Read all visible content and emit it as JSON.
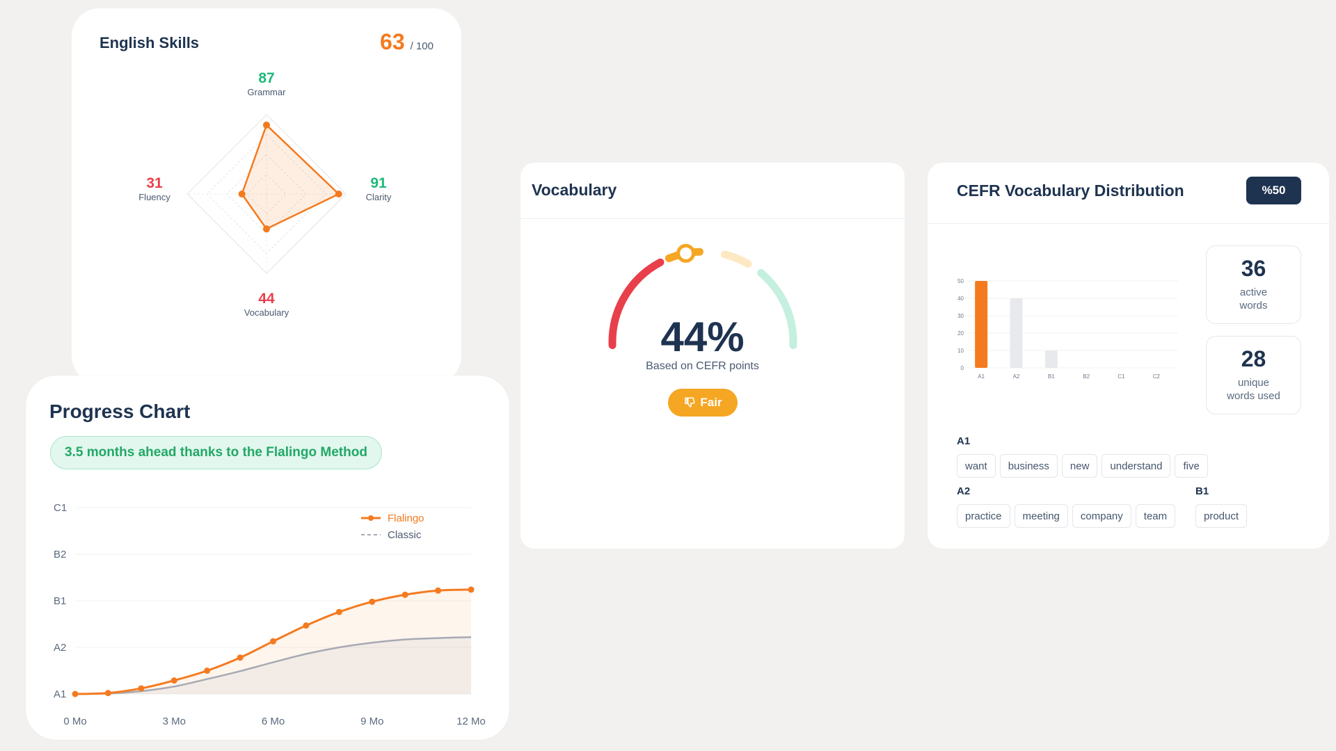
{
  "skills": {
    "title": "English Skills",
    "score": "63",
    "score_max": "/ 100",
    "axes": [
      {
        "name": "Grammar",
        "value": 87,
        "value_text": "87",
        "color": "#1db97a"
      },
      {
        "name": "Clarity",
        "value": 91,
        "value_text": "91",
        "color": "#1db97a"
      },
      {
        "name": "Vocabulary",
        "value": 44,
        "value_text": "44",
        "color": "#e8404b"
      },
      {
        "name": "Fluency",
        "value": 31,
        "value_text": "31",
        "color": "#e8404b"
      }
    ]
  },
  "progress": {
    "title": "Progress Chart",
    "note": "3.5 months ahead thanks to the Flalingo Method",
    "legend": {
      "primary": "Flalingo",
      "secondary": "Classic"
    }
  },
  "vocabulary": {
    "title": "Vocabulary",
    "percent": "44%",
    "basis": "Based on CEFR points",
    "rating": "Fair",
    "rating_icon": "thumbs-down-icon",
    "value": 44
  },
  "cefr": {
    "title": "CEFR Vocabulary Distribution",
    "badge": "%50",
    "stats": {
      "active_count": "36",
      "active_label_1": "active",
      "active_label_2": "words",
      "unique_count": "28",
      "unique_label_1": "unique",
      "unique_label_2": "words used"
    },
    "groups": [
      {
        "level": "A1",
        "words": [
          "want",
          "business",
          "new",
          "understand",
          "five"
        ]
      },
      {
        "level": "A2",
        "words": [
          "practice",
          "meeting",
          "company",
          "team"
        ]
      },
      {
        "level": "B1",
        "words": [
          "product"
        ]
      }
    ]
  },
  "colors": {
    "accent": "#f47a1f",
    "navy": "#1e3350",
    "green": "#1db97a",
    "red": "#e8404b",
    "amber": "#f5a623",
    "gray_line": "#a7a9b4"
  },
  "chart_data": [
    {
      "type": "line",
      "x_ticks": [
        "0 Mo",
        "3 Mo",
        "6 Mo",
        "9 Mo",
        "12 Mo"
      ],
      "y_ticks": [
        "A1",
        "A2",
        "B1",
        "B2",
        "C1"
      ],
      "xlim": [
        0,
        12
      ],
      "ylim": [
        0,
        4
      ],
      "series": [
        {
          "name": "Flalingo",
          "color": "#f47a1f",
          "x": [
            0,
            1,
            2,
            3,
            4,
            5,
            6,
            7,
            8,
            9,
            10,
            11,
            12
          ],
          "y": [
            0,
            0.02,
            0.12,
            0.29,
            0.5,
            0.78,
            1.13,
            1.47,
            1.76,
            1.98,
            2.13,
            2.22,
            2.24
          ]
        },
        {
          "name": "Classic",
          "color": "#a7a9b4",
          "x": [
            0,
            1,
            2,
            3,
            4,
            5,
            6,
            7,
            8,
            9,
            10,
            11,
            12
          ],
          "y": [
            0,
            0.01,
            0.06,
            0.16,
            0.32,
            0.49,
            0.68,
            0.86,
            1.0,
            1.1,
            1.17,
            1.2,
            1.22
          ]
        }
      ],
      "grid": true,
      "legend": "top-right"
    },
    {
      "type": "bar",
      "categories": [
        "A1",
        "A2",
        "B1",
        "B2",
        "C1",
        "C2"
      ],
      "values": [
        50,
        40,
        10,
        0,
        0,
        0
      ],
      "y_ticks": [
        "0",
        "10",
        "20",
        "30",
        "40",
        "50"
      ],
      "ylim": [
        0,
        50
      ],
      "colors": [
        "#f47a1f",
        "#e8e9ec",
        "#e8e9ec",
        "#e8e9ec",
        "#e8e9ec",
        "#e8e9ec"
      ],
      "grid": true
    },
    {
      "type": "radar",
      "categories": [
        "Grammar",
        "Clarity",
        "Vocabulary",
        "Fluency"
      ],
      "values": [
        87,
        91,
        44,
        31
      ],
      "max": 100
    }
  ]
}
